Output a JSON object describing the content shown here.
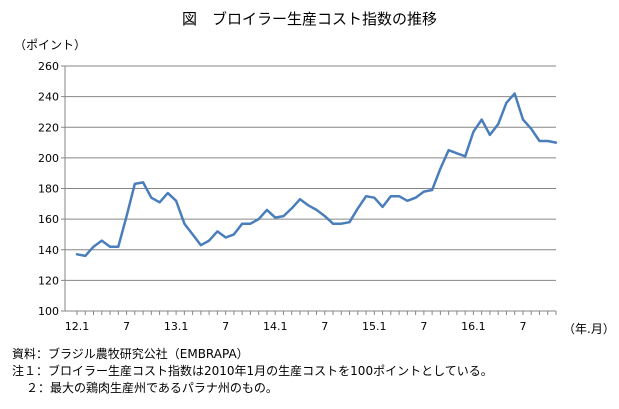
{
  "chart_data": {
    "type": "line",
    "title": "図　ブロイラー生産コスト指数の推移",
    "ylabel": "（ポイント）",
    "xlabel": "（年.月）",
    "ylim": [
      100,
      260
    ],
    "yticks": [
      100,
      120,
      140,
      160,
      180,
      200,
      220,
      240,
      260
    ],
    "grid": true,
    "x_tick_labels": [
      {
        "label": "12.1",
        "index": 0
      },
      {
        "label": "7",
        "index": 6
      },
      {
        "label": "13.1",
        "index": 12
      },
      {
        "label": "7",
        "index": 18
      },
      {
        "label": "14.1",
        "index": 24
      },
      {
        "label": "7",
        "index": 30
      },
      {
        "label": "15.1",
        "index": 36
      },
      {
        "label": "7",
        "index": 42
      },
      {
        "label": "16.1",
        "index": 48
      },
      {
        "label": "7",
        "index": 54
      }
    ],
    "series": [
      {
        "color": "#4a7ebb",
        "values": [
          137,
          136,
          142,
          146,
          142,
          142,
          162,
          183,
          184,
          174,
          171,
          177,
          172,
          157,
          150,
          143,
          146,
          152,
          148,
          150,
          157,
          157,
          160,
          166,
          161,
          162,
          167,
          173,
          169,
          166,
          162,
          157,
          157,
          158,
          167,
          175,
          174,
          168,
          175,
          175,
          172,
          174,
          178,
          179,
          193,
          205,
          203,
          201,
          217,
          225,
          215,
          222,
          236,
          242,
          225,
          219,
          211,
          211,
          210
        ]
      }
    ]
  },
  "notes": [
    "資料：ブラジル農牧研究公社（EMBRAPA）",
    "注１：ブロイラー生産コスト指数は2010年1月の生産コストを100ポイントとしている。",
    "２：最大の鶏肉生産州であるパラナ州のもの。"
  ]
}
